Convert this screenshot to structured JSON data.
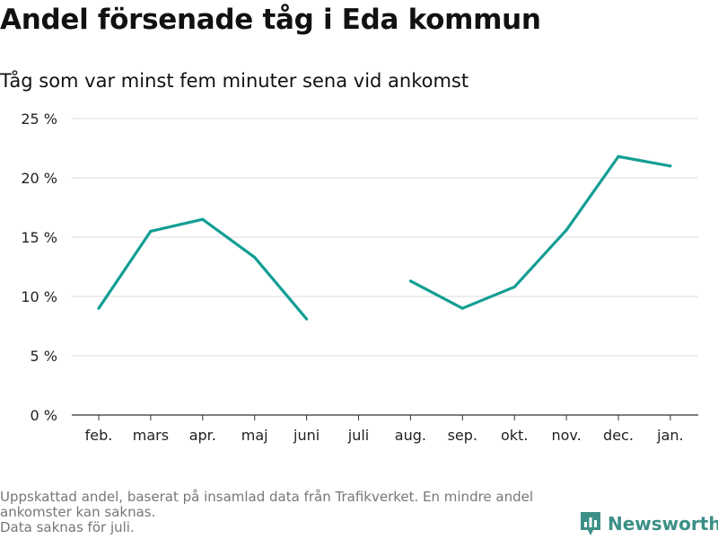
{
  "title": "Andel försenade tåg i Eda kommun",
  "subtitle": "Tåg som var minst fem minuter sena vid ankomst",
  "footnote": [
    "Uppskattad andel, baserat på insamlad data från Trafikverket. En mindre andel",
    "ankomster kan saknas.",
    "Data saknas för juli."
  ],
  "brand": {
    "name": "Newsworthy",
    "icon": "bar-chart-logo-icon"
  },
  "colors": {
    "line": "#139e94",
    "grid": "#dddddd",
    "axis": "#333333",
    "brand": "#3b8f86"
  },
  "chart_data": {
    "type": "line",
    "categories": [
      "feb.",
      "mars",
      "apr.",
      "maj",
      "juni",
      "juli",
      "aug.",
      "sep.",
      "okt.",
      "nov.",
      "dec.",
      "jan."
    ],
    "series": [
      {
        "values": [
          9.0,
          15.5,
          16.5,
          13.3,
          8.1,
          null,
          11.3,
          9.0,
          10.8,
          15.6,
          21.8,
          21.0
        ]
      }
    ],
    "y_ticks": [
      0,
      5,
      10,
      15,
      20,
      25
    ],
    "y_tick_format": "{} %",
    "ylim": [
      0,
      25
    ],
    "grid": true,
    "xlabel": "",
    "ylabel": ""
  }
}
